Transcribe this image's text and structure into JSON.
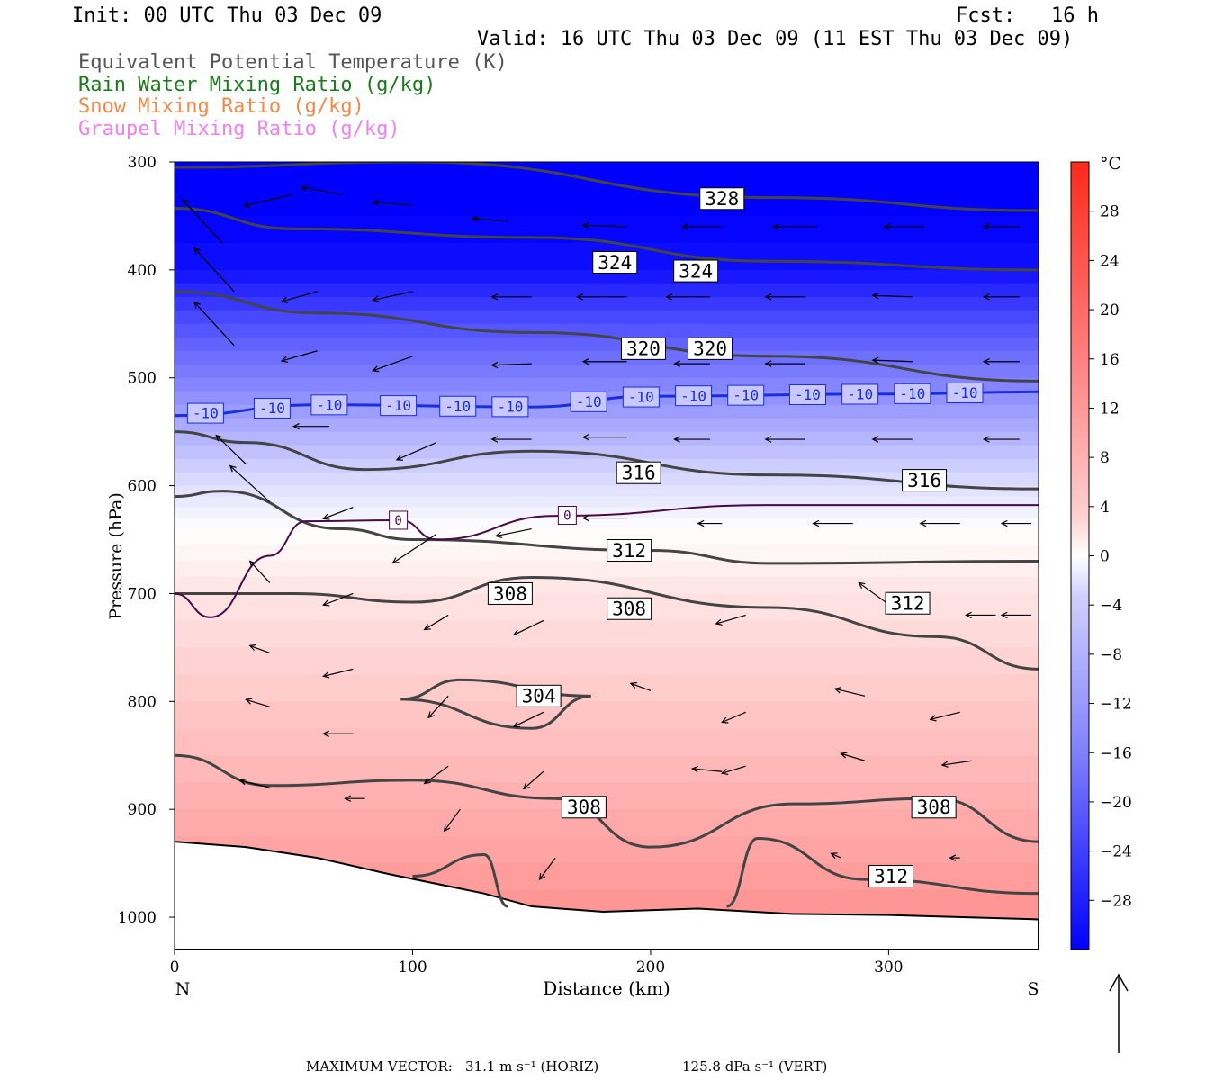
{
  "header": {
    "init": "Init: 00 UTC Thu 03 Dec 09",
    "fcst": "Fcst:   16 h",
    "valid": "Valid: 16 UTC Thu 03 Dec 09 (11 EST Thu 03 Dec 09)",
    "legend": [
      {
        "text": "Equivalent Potential Temperature (K)",
        "color": "#555555"
      },
      {
        "text": "Rain Water Mixing Ratio (g/kg)",
        "color": "#1a7a1a"
      },
      {
        "text": "Snow Mixing Ratio (g/kg)",
        "color": "#f08a4b"
      },
      {
        "text": "Graupel Mixing Ratio (g/kg)",
        "color": "#ee82ee"
      }
    ]
  },
  "footer": {
    "max_vector_label": "MAXIMUM VECTOR:",
    "horiz": "31.1 m s⁻¹ (HORIZ)",
    "vert": "125.8 dPa s⁻¹ (VERT)"
  },
  "chart_data": {
    "type": "cross-section",
    "xlabel": "Distance (km)",
    "ylabel": "Pressure (hPa)",
    "xlim": [
      0,
      363
    ],
    "ylim": [
      1030,
      300
    ],
    "xticks": [
      0,
      100,
      200,
      300
    ],
    "yticks": [
      300,
      400,
      500,
      600,
      700,
      800,
      900,
      1000
    ],
    "x_end_labels": {
      "left": "N",
      "right": "S"
    },
    "colorbar": {
      "unit": "°C",
      "ticks": [
        28,
        24,
        20,
        16,
        12,
        8,
        4,
        0,
        -4,
        -8,
        -12,
        -16,
        -20,
        -24,
        -28
      ],
      "range": [
        -32,
        32
      ]
    },
    "temperature_fill_c": [
      {
        "p": 300,
        "t": -34
      },
      {
        "p": 400,
        "t": -30
      },
      {
        "p": 450,
        "t": -22
      },
      {
        "p": 500,
        "t": -16
      },
      {
        "p": 550,
        "t": -10
      },
      {
        "p": 600,
        "t": -4
      },
      {
        "p": 640,
        "t": 0
      },
      {
        "p": 700,
        "t": 4
      },
      {
        "p": 800,
        "t": 8
      },
      {
        "p": 900,
        "t": 12
      },
      {
        "p": 1000,
        "t": 16
      }
    ],
    "theta_e_contours": [
      {
        "level": 328,
        "points": [
          [
            0,
            305
          ],
          [
            100,
            300
          ],
          [
            250,
            333
          ],
          [
            363,
            345
          ]
        ]
      },
      {
        "level": 324,
        "points": [
          [
            0,
            343
          ],
          [
            50,
            362
          ],
          [
            150,
            370
          ],
          [
            250,
            392
          ],
          [
            363,
            400
          ]
        ]
      },
      {
        "level": 320,
        "points": [
          [
            0,
            420
          ],
          [
            60,
            440
          ],
          [
            150,
            458
          ],
          [
            250,
            480
          ],
          [
            363,
            503
          ]
        ]
      },
      {
        "level": 316,
        "points": [
          [
            0,
            550
          ],
          [
            30,
            560
          ],
          [
            80,
            585
          ],
          [
            150,
            568
          ],
          [
            250,
            590
          ],
          [
            363,
            603
          ]
        ]
      },
      {
        "level": 312,
        "points": [
          [
            0,
            610
          ],
          [
            20,
            605
          ],
          [
            70,
            640
          ],
          [
            100,
            650
          ],
          [
            200,
            660
          ],
          [
            250,
            672
          ],
          [
            363,
            670
          ]
        ]
      },
      {
        "level": 308,
        "points": [
          [
            0,
            700
          ],
          [
            50,
            700
          ],
          [
            100,
            708
          ],
          [
            150,
            685
          ],
          [
            250,
            713
          ],
          [
            320,
            740
          ],
          [
            363,
            770
          ]
        ]
      },
      {
        "level": 304,
        "points": [
          [
            95,
            798
          ],
          [
            120,
            780
          ],
          [
            175,
            795
          ],
          [
            150,
            825
          ],
          [
            95,
            798
          ]
        ]
      },
      {
        "level": 308,
        "points": [
          [
            0,
            850
          ],
          [
            40,
            878
          ],
          [
            100,
            873
          ],
          [
            160,
            890
          ],
          [
            200,
            935
          ],
          [
            260,
            895
          ],
          [
            320,
            890
          ],
          [
            363,
            930
          ]
        ]
      },
      {
        "level": 312,
        "points": [
          [
            100,
            962
          ],
          [
            130,
            942
          ],
          [
            140,
            990
          ]
        ]
      },
      {
        "level": 312,
        "points": [
          [
            232,
            990
          ],
          [
            245,
            927
          ],
          [
            290,
            965
          ],
          [
            363,
            978
          ]
        ]
      }
    ],
    "contour_labels": [
      {
        "text": "328",
        "x": 230,
        "p": 334
      },
      {
        "text": "324",
        "x": 185,
        "p": 393
      },
      {
        "text": "324",
        "x": 219,
        "p": 401
      },
      {
        "text": "320",
        "x": 197,
        "p": 473
      },
      {
        "text": "320",
        "x": 225,
        "p": 473
      },
      {
        "text": "316",
        "x": 195,
        "p": 588
      },
      {
        "text": "316",
        "x": 315,
        "p": 595
      },
      {
        "text": "312",
        "x": 191,
        "p": 660
      },
      {
        "text": "312",
        "x": 308,
        "p": 709
      },
      {
        "text": "308",
        "x": 141,
        "p": 700
      },
      {
        "text": "308",
        "x": 191,
        "p": 714
      },
      {
        "text": "304",
        "x": 153,
        "p": 795
      },
      {
        "text": "308",
        "x": 172,
        "p": 898
      },
      {
        "text": "308",
        "x": 319,
        "p": 898
      },
      {
        "text": "312",
        "x": 301,
        "p": 962
      }
    ],
    "isotherm_minus10": {
      "level": -10,
      "points": [
        [
          0,
          535
        ],
        [
          60,
          525
        ],
        [
          150,
          527
        ],
        [
          200,
          517
        ],
        [
          300,
          515
        ],
        [
          363,
          513
        ]
      ],
      "label": "-10",
      "label_x": [
        13,
        41,
        65,
        94,
        119,
        141,
        174,
        196,
        218,
        240,
        266,
        288,
        310,
        332
      ]
    },
    "isotherm_zero": {
      "level": 0,
      "points": [
        [
          0,
          700
        ],
        [
          15,
          722
        ],
        [
          40,
          665
        ],
        [
          55,
          633
        ],
        [
          95,
          632
        ],
        [
          110,
          650
        ],
        [
          160,
          628
        ],
        [
          250,
          618
        ],
        [
          363,
          618
        ]
      ],
      "label": "0",
      "label_x": [
        94,
        165
      ]
    },
    "terrain": [
      [
        0,
        930
      ],
      [
        30,
        935
      ],
      [
        60,
        945
      ],
      [
        90,
        960
      ],
      [
        130,
        978
      ],
      [
        150,
        990
      ],
      [
        180,
        995
      ],
      [
        220,
        992
      ],
      [
        260,
        997
      ],
      [
        300,
        998
      ],
      [
        363,
        1002
      ]
    ],
    "wind_vectors": [
      [
        20,
        375,
        -20,
        -30
      ],
      [
        50,
        330,
        -25,
        8
      ],
      [
        70,
        330,
        -20,
        -5
      ],
      [
        100,
        340,
        -20,
        -2
      ],
      [
        140,
        355,
        -18,
        -2
      ],
      [
        190,
        360,
        -22,
        -1
      ],
      [
        230,
        360,
        -20,
        0
      ],
      [
        270,
        360,
        -22,
        0
      ],
      [
        315,
        360,
        -20,
        0
      ],
      [
        355,
        360,
        -18,
        0
      ],
      [
        25,
        420,
        -20,
        -30
      ],
      [
        60,
        420,
        -18,
        7
      ],
      [
        100,
        420,
        -20,
        6
      ],
      [
        150,
        425,
        -20,
        0
      ],
      [
        190,
        425,
        -25,
        0
      ],
      [
        225,
        425,
        -22,
        0
      ],
      [
        265,
        425,
        -20,
        0
      ],
      [
        310,
        425,
        -20,
        -1
      ],
      [
        355,
        425,
        -18,
        0
      ],
      [
        25,
        470,
        -20,
        -30
      ],
      [
        60,
        475,
        -18,
        7
      ],
      [
        100,
        480,
        -20,
        10
      ],
      [
        150,
        487,
        -20,
        1
      ],
      [
        190,
        485,
        -22,
        0
      ],
      [
        225,
        487,
        -18,
        0
      ],
      [
        265,
        487,
        -20,
        0
      ],
      [
        310,
        485,
        -20,
        -1
      ],
      [
        355,
        485,
        -18,
        0
      ],
      [
        30,
        580,
        -15,
        -20
      ],
      [
        65,
        545,
        -18,
        0
      ],
      [
        110,
        560,
        -20,
        12
      ],
      [
        150,
        557,
        -20,
        0
      ],
      [
        190,
        555,
        -22,
        0
      ],
      [
        225,
        557,
        -18,
        0
      ],
      [
        265,
        557,
        -20,
        0
      ],
      [
        310,
        557,
        -20,
        0
      ],
      [
        355,
        557,
        -18,
        0
      ],
      [
        40,
        615,
        -20,
        -25
      ],
      [
        75,
        620,
        -15,
        8
      ],
      [
        110,
        645,
        -22,
        20
      ],
      [
        150,
        640,
        -18,
        5
      ],
      [
        190,
        630,
        -22,
        0
      ],
      [
        230,
        635,
        -12,
        0
      ],
      [
        285,
        635,
        -20,
        0
      ],
      [
        330,
        635,
        -20,
        0
      ],
      [
        360,
        635,
        -15,
        0
      ],
      [
        40,
        690,
        -10,
        -15
      ],
      [
        75,
        700,
        -15,
        8
      ],
      [
        115,
        720,
        -12,
        10
      ],
      [
        155,
        725,
        -15,
        10
      ],
      [
        240,
        720,
        -15,
        6
      ],
      [
        300,
        710,
        -15,
        -15
      ],
      [
        345,
        720,
        -15,
        0
      ],
      [
        360,
        720,
        -15,
        0
      ],
      [
        40,
        755,
        -10,
        -5
      ],
      [
        75,
        770,
        -15,
        5
      ],
      [
        115,
        795,
        -10,
        15
      ],
      [
        155,
        810,
        -15,
        10
      ],
      [
        200,
        790,
        -10,
        -5
      ],
      [
        240,
        810,
        -12,
        7
      ],
      [
        290,
        795,
        -15,
        -5
      ],
      [
        330,
        810,
        -15,
        5
      ],
      [
        40,
        805,
        -12,
        -5
      ],
      [
        75,
        830,
        -15,
        0
      ],
      [
        115,
        860,
        -12,
        12
      ],
      [
        155,
        865,
        -10,
        12
      ],
      [
        230,
        865,
        -15,
        -2
      ],
      [
        240,
        860,
        -12,
        5
      ],
      [
        290,
        855,
        -12,
        -5
      ],
      [
        335,
        855,
        -15,
        3
      ],
      [
        40,
        880,
        -15,
        -5
      ],
      [
        80,
        890,
        -10,
        0
      ],
      [
        120,
        900,
        -8,
        15
      ],
      [
        160,
        945,
        -8,
        15
      ],
      [
        280,
        945,
        -5,
        -3
      ],
      [
        330,
        945,
        -5,
        0
      ]
    ]
  }
}
